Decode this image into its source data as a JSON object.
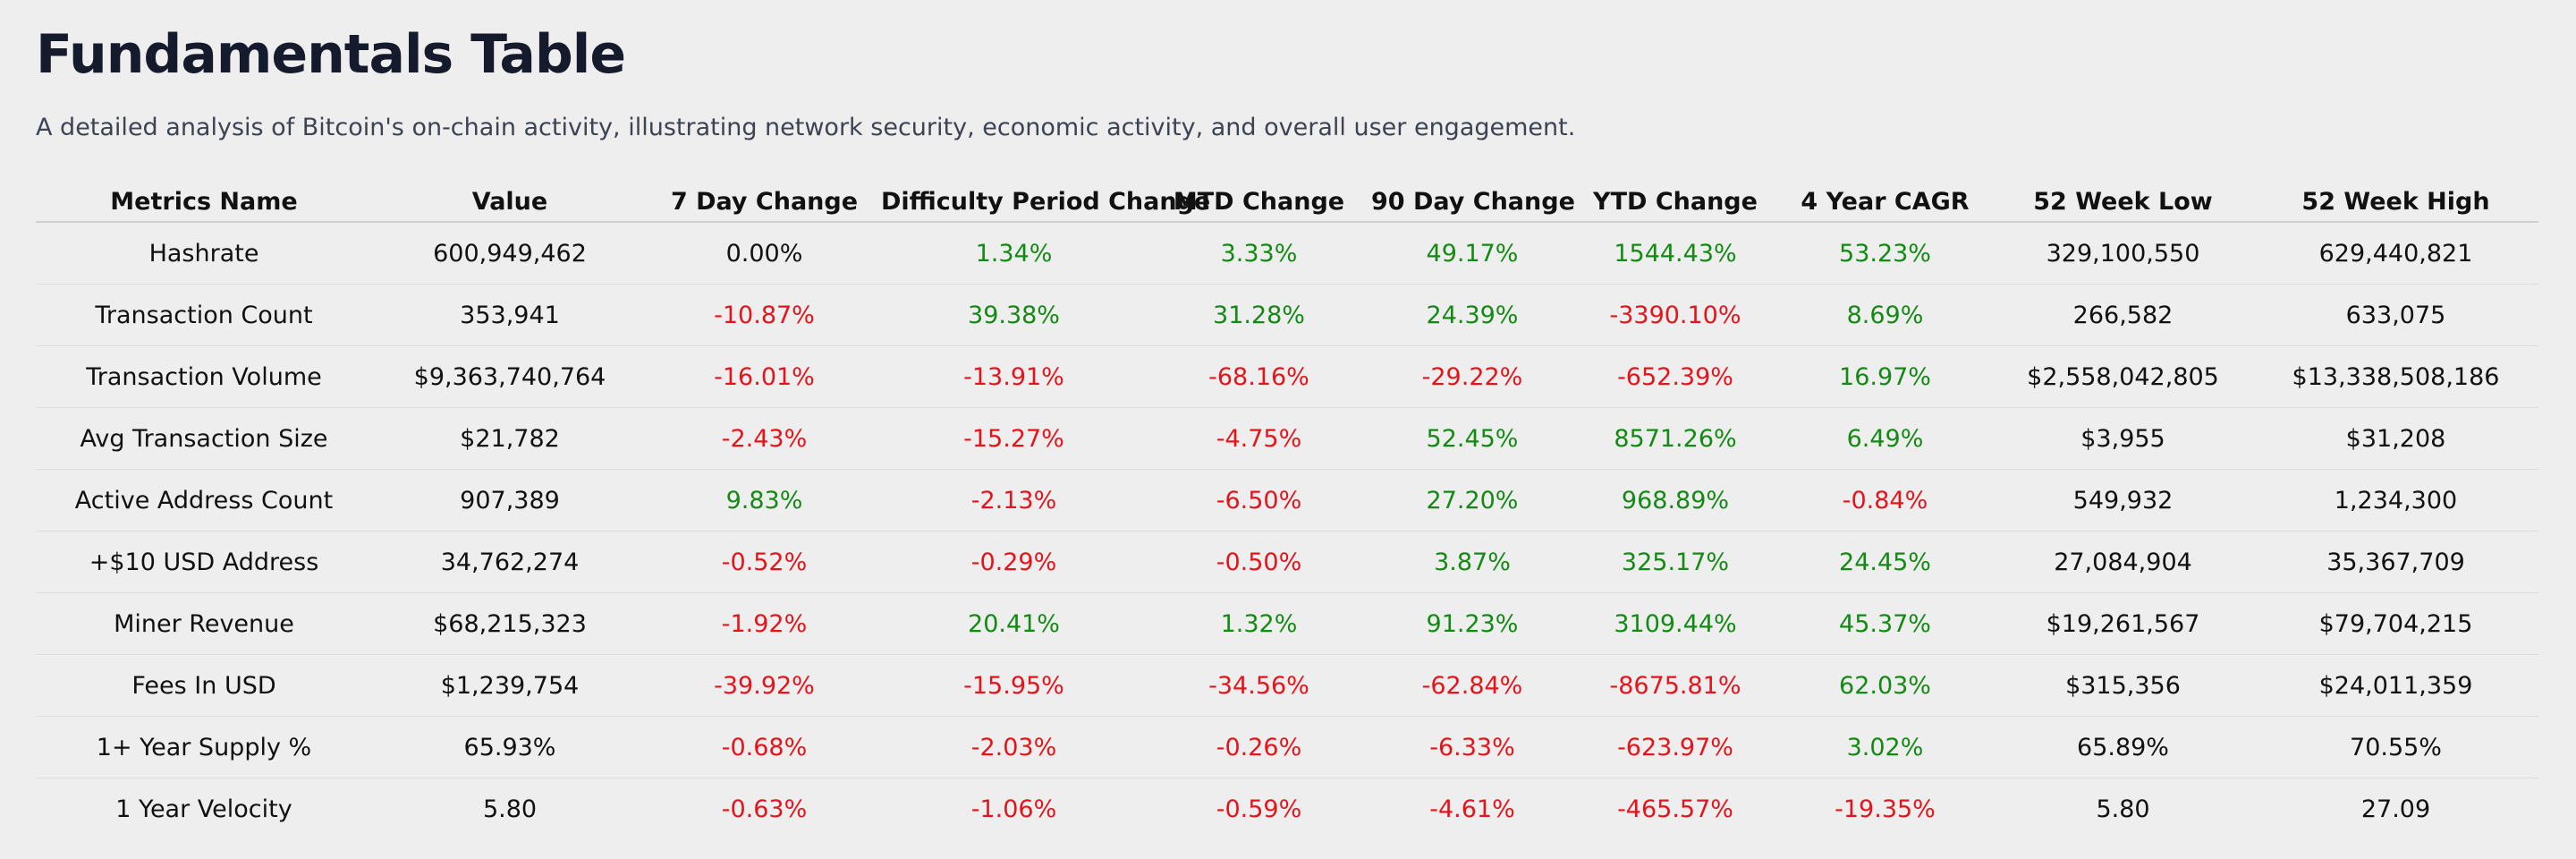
{
  "header": {
    "title": "Fundamentals Table",
    "subtitle": "A detailed analysis of Bitcoin's on-chain activity, illustrating network security, economic activity, and overall user engagement."
  },
  "table": {
    "positive_color": "#138a13",
    "negative_color": "#e5141b",
    "columns": [
      "Metrics Name",
      "Value",
      "7 Day Change",
      "Difficulty Period Change",
      "MTD Change",
      "90 Day Change",
      "YTD Change",
      "4 Year CAGR",
      "52 Week Low",
      "52 Week High"
    ],
    "rows": [
      [
        "Hashrate",
        "600,949,462",
        "0.00%",
        "1.34%",
        "3.33%",
        "49.17%",
        "1544.43%",
        "53.23%",
        "329,100,550",
        "629,440,821"
      ],
      [
        "Transaction Count",
        "353,941",
        "-10.87%",
        "39.38%",
        "31.28%",
        "24.39%",
        "-3390.10%",
        "8.69%",
        "266,582",
        "633,075"
      ],
      [
        "Transaction Volume",
        "$9,363,740,764",
        "-16.01%",
        "-13.91%",
        "-68.16%",
        "-29.22%",
        "-652.39%",
        "16.97%",
        "$2,558,042,805",
        "$13,338,508,186"
      ],
      [
        "Avg Transaction Size",
        "$21,782",
        "-2.43%",
        "-15.27%",
        "-4.75%",
        "52.45%",
        "8571.26%",
        "6.49%",
        "$3,955",
        "$31,208"
      ],
      [
        "Active Address Count",
        "907,389",
        "9.83%",
        "-2.13%",
        "-6.50%",
        "27.20%",
        "968.89%",
        "-0.84%",
        "549,932",
        "1,234,300"
      ],
      [
        "+$10 USD Address",
        "34,762,274",
        "-0.52%",
        "-0.29%",
        "-0.50%",
        "3.87%",
        "325.17%",
        "24.45%",
        "27,084,904",
        "35,367,709"
      ],
      [
        "Miner Revenue",
        "$68,215,323",
        "-1.92%",
        "20.41%",
        "1.32%",
        "91.23%",
        "3109.44%",
        "45.37%",
        "$19,261,567",
        "$79,704,215"
      ],
      [
        "Fees In USD",
        "$1,239,754",
        "-39.92%",
        "-15.95%",
        "-34.56%",
        "-62.84%",
        "-8675.81%",
        "62.03%",
        "$315,356",
        "$24,011,359"
      ],
      [
        "1+ Year Supply %",
        "65.93%",
        "-0.68%",
        "-2.03%",
        "-0.26%",
        "-6.33%",
        "-623.97%",
        "3.02%",
        "65.89%",
        "70.55%"
      ],
      [
        "1 Year Velocity",
        "5.80",
        "-0.63%",
        "-1.06%",
        "-0.59%",
        "-4.61%",
        "-465.57%",
        "-19.35%",
        "5.80",
        "27.09"
      ]
    ]
  }
}
